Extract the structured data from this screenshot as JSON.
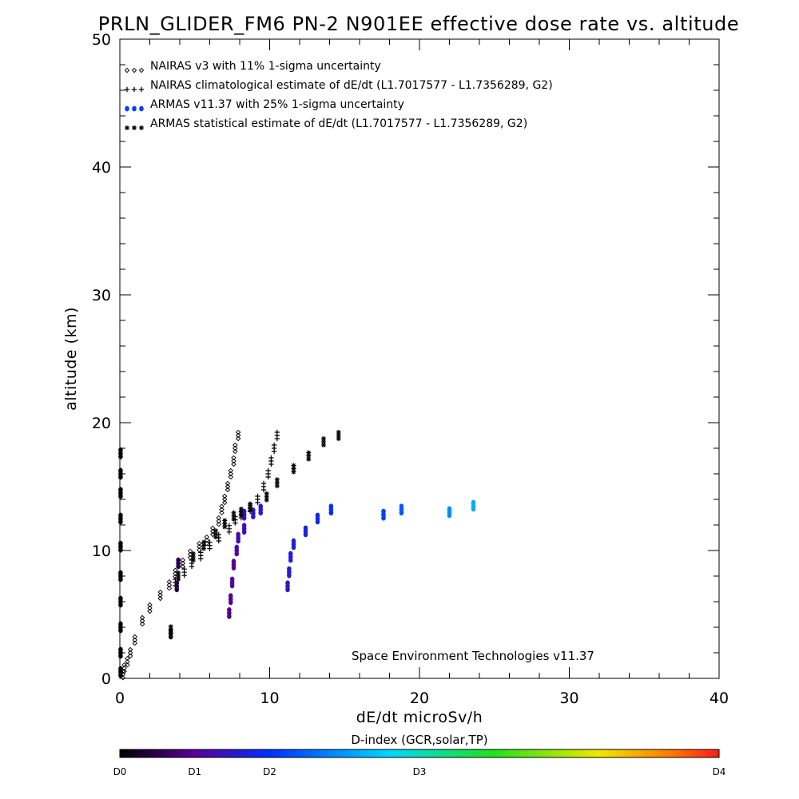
{
  "chart_data": {
    "type": "scatter",
    "title": "PRLN_GLIDER_FM6 PN-2 N901EE effective dose rate vs. altitude",
    "xlabel": "dE/dt microSv/h",
    "ylabel": "altitude (km)",
    "xlim": [
      0,
      40
    ],
    "ylim": [
      0,
      50
    ],
    "x_ticks": [
      "0",
      "10",
      "20",
      "30",
      "40"
    ],
    "y_ticks": [
      "0",
      "10",
      "20",
      "30",
      "40",
      "50"
    ],
    "grid": false,
    "legend_position": "top-left",
    "annotation": "Space Environment Technologies v11.37",
    "colorbar": {
      "title": "D-index (GCR,solar,TP)",
      "labels": [
        "D0",
        "D1",
        "D2",
        "D3",
        "D4"
      ],
      "label_positions": [
        0,
        0.125,
        0.25,
        0.5,
        1.0
      ],
      "colors": [
        "#000000",
        "#5a0096",
        "#0030ff",
        "#00d8ff",
        "#1ee21e",
        "#f0e800",
        "#ff7800",
        "#ff1a1a"
      ]
    },
    "series": [
      {
        "name": "NAIRAS v3 with 11% 1-sigma uncertainty",
        "marker": "diamond",
        "color": "#000000",
        "points": [
          {
            "x": 0.2,
            "y": 0.3
          },
          {
            "x": 0.3,
            "y": 0.8
          },
          {
            "x": 0.5,
            "y": 1.3
          },
          {
            "x": 0.7,
            "y": 2.0
          },
          {
            "x": 1.0,
            "y": 3.0
          },
          {
            "x": 1.5,
            "y": 4.5
          },
          {
            "x": 2.0,
            "y": 5.5
          },
          {
            "x": 2.7,
            "y": 6.5
          },
          {
            "x": 3.3,
            "y": 7.3
          },
          {
            "x": 3.7,
            "y": 8.2
          },
          {
            "x": 4.2,
            "y": 9.0
          },
          {
            "x": 4.7,
            "y": 9.7
          },
          {
            "x": 5.3,
            "y": 10.3
          },
          {
            "x": 5.8,
            "y": 10.8
          },
          {
            "x": 6.2,
            "y": 11.5
          },
          {
            "x": 6.6,
            "y": 12.3
          },
          {
            "x": 6.8,
            "y": 13.2
          },
          {
            "x": 7.0,
            "y": 14.0
          },
          {
            "x": 7.2,
            "y": 15.0
          },
          {
            "x": 7.4,
            "y": 16.0
          },
          {
            "x": 7.6,
            "y": 17.0
          },
          {
            "x": 7.7,
            "y": 18.0
          },
          {
            "x": 7.9,
            "y": 19.0
          }
        ]
      },
      {
        "name": "NAIRAS climatological estimate of dE/dt (L1.7017577 - L1.7356289, G2)",
        "marker": "plus",
        "color": "#000000",
        "points": [
          {
            "x": 3.7,
            "y": 7.5
          },
          {
            "x": 4.3,
            "y": 8.3
          },
          {
            "x": 4.8,
            "y": 9.0
          },
          {
            "x": 5.4,
            "y": 9.6
          },
          {
            "x": 6.0,
            "y": 10.4
          },
          {
            "x": 6.6,
            "y": 11.0
          },
          {
            "x": 7.3,
            "y": 11.7
          },
          {
            "x": 7.7,
            "y": 12.4
          },
          {
            "x": 8.1,
            "y": 12.8
          },
          {
            "x": 8.7,
            "y": 13.3
          },
          {
            "x": 9.2,
            "y": 14.0
          },
          {
            "x": 9.6,
            "y": 15.0
          },
          {
            "x": 9.9,
            "y": 16.0
          },
          {
            "x": 10.1,
            "y": 17.0
          },
          {
            "x": 10.3,
            "y": 18.0
          },
          {
            "x": 10.5,
            "y": 19.0
          }
        ]
      },
      {
        "name": "ARMAS v11.37 with 25% 1-sigma uncertainty",
        "marker": "dot",
        "color": "#0a3cff",
        "points": [
          {
            "x": 0.05,
            "y": 0.5,
            "d": 0.0
          },
          {
            "x": 0.05,
            "y": 2.0,
            "d": 0.0
          },
          {
            "x": 0.05,
            "y": 4.0,
            "d": 0.0
          },
          {
            "x": 0.05,
            "y": 6.0,
            "d": 0.0
          },
          {
            "x": 0.05,
            "y": 8.0,
            "d": 0.0
          },
          {
            "x": 0.05,
            "y": 10.3,
            "d": 0.0
          },
          {
            "x": 0.05,
            "y": 12.5,
            "d": 0.0
          },
          {
            "x": 0.05,
            "y": 14.5,
            "d": 0.0
          },
          {
            "x": 0.05,
            "y": 16.0,
            "d": 0.0
          },
          {
            "x": 0.05,
            "y": 17.6,
            "d": 0.0
          },
          {
            "x": 3.4,
            "y": 3.5,
            "d": 0.03
          },
          {
            "x": 3.8,
            "y": 7.2,
            "d": 0.05
          },
          {
            "x": 3.9,
            "y": 9.0,
            "d": 0.06
          },
          {
            "x": 7.3,
            "y": 5.1,
            "d": 0.12
          },
          {
            "x": 7.4,
            "y": 6.2,
            "d": 0.12
          },
          {
            "x": 7.5,
            "y": 7.5,
            "d": 0.13
          },
          {
            "x": 7.6,
            "y": 8.9,
            "d": 0.13
          },
          {
            "x": 7.8,
            "y": 10.0,
            "d": 0.14
          },
          {
            "x": 7.9,
            "y": 11.0,
            "d": 0.15
          },
          {
            "x": 8.3,
            "y": 11.7,
            "d": 0.16
          },
          {
            "x": 8.3,
            "y": 12.8,
            "d": 0.17
          },
          {
            "x": 8.9,
            "y": 12.9,
            "d": 0.18
          },
          {
            "x": 9.4,
            "y": 13.2,
            "d": 0.19
          },
          {
            "x": 11.2,
            "y": 7.2,
            "d": 0.19
          },
          {
            "x": 11.3,
            "y": 8.3,
            "d": 0.2
          },
          {
            "x": 11.4,
            "y": 9.5,
            "d": 0.2
          },
          {
            "x": 11.6,
            "y": 10.5,
            "d": 0.21
          },
          {
            "x": 12.4,
            "y": 11.5,
            "d": 0.22
          },
          {
            "x": 13.2,
            "y": 12.5,
            "d": 0.23
          },
          {
            "x": 14.1,
            "y": 13.2,
            "d": 0.25
          },
          {
            "x": 17.6,
            "y": 12.8,
            "d": 0.27
          },
          {
            "x": 18.8,
            "y": 13.2,
            "d": 0.3
          },
          {
            "x": 22.0,
            "y": 13.0,
            "d": 0.36
          },
          {
            "x": 23.6,
            "y": 13.5,
            "d": 0.4
          }
        ]
      },
      {
        "name": "ARMAS statistical estimate of dE/dt (L1.7017577 - L1.7356289, G2)",
        "marker": "asterisk",
        "color": "#000000",
        "points": [
          {
            "x": 3.4,
            "y": 3.8
          },
          {
            "x": 3.9,
            "y": 8.0
          },
          {
            "x": 4.9,
            "y": 9.5
          },
          {
            "x": 5.6,
            "y": 10.4
          },
          {
            "x": 6.4,
            "y": 11.3
          },
          {
            "x": 7.0,
            "y": 12.1
          },
          {
            "x": 7.6,
            "y": 12.7
          },
          {
            "x": 8.1,
            "y": 13.0
          },
          {
            "x": 8.7,
            "y": 13.4
          },
          {
            "x": 9.8,
            "y": 14.2
          },
          {
            "x": 10.5,
            "y": 15.3
          },
          {
            "x": 11.6,
            "y": 16.4
          },
          {
            "x": 12.6,
            "y": 17.4
          },
          {
            "x": 13.6,
            "y": 18.5
          },
          {
            "x": 14.6,
            "y": 19.0
          }
        ]
      }
    ]
  }
}
